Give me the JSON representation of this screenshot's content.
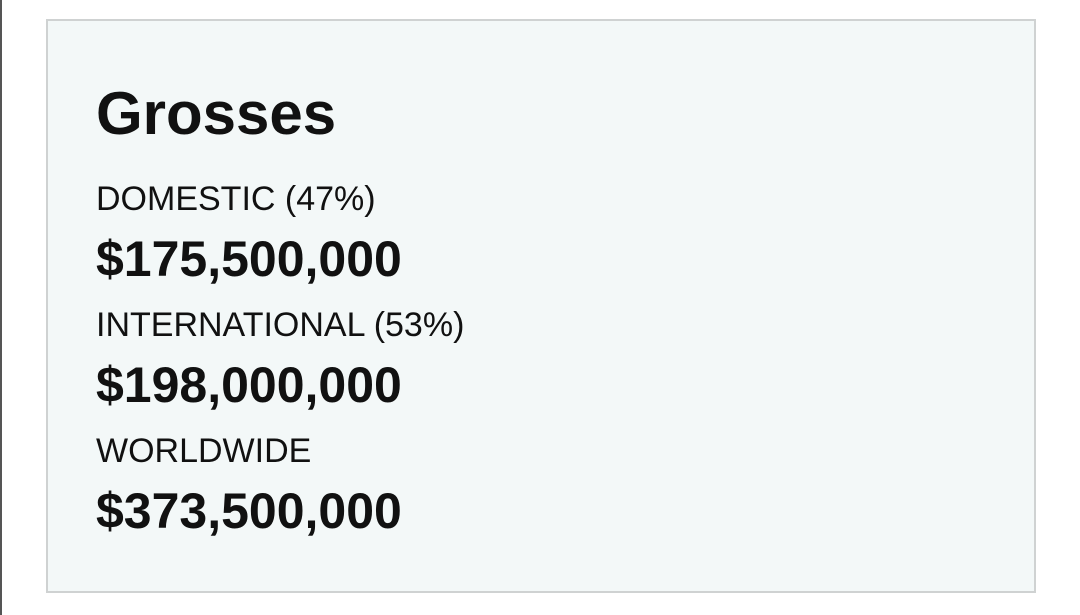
{
  "title": "Grosses",
  "rows": [
    {
      "label": "DOMESTIC (47%)",
      "value": "$175,500,000"
    },
    {
      "label": "INTERNATIONAL (53%)",
      "value": "$198,000,000"
    },
    {
      "label": "WORLDWIDE",
      "value": "$373,500,000"
    }
  ]
}
